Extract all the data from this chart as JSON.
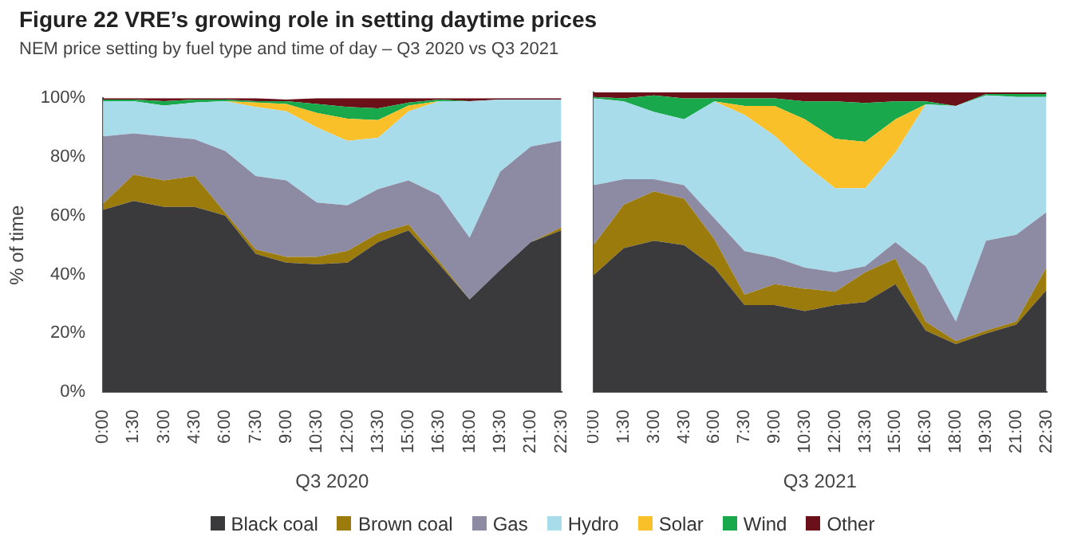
{
  "chart_data": [
    {
      "type": "area",
      "title": "Figure 22  VRE’s growing role in setting daytime prices",
      "subtitle": "NEM price setting by fuel type and time of day – Q3 2020 vs Q3 2021",
      "xlabel": "Q3 2020",
      "ylabel": "% of time",
      "stacked": true,
      "grid": false,
      "legend": "bottom",
      "categories": [
        "0:00",
        "1:30",
        "3:00",
        "4:30",
        "6:00",
        "7:30",
        "9:00",
        "10:30",
        "12:00",
        "13:30",
        "15:00",
        "16:30",
        "18:00",
        "19:30",
        "21:00",
        "22:30"
      ],
      "ylim": [
        0,
        100
      ],
      "yticks": [
        {
          "value": 0,
          "label": "0%"
        },
        {
          "value": 20,
          "label": "20%"
        },
        {
          "value": 40,
          "label": "40%"
        },
        {
          "value": 60,
          "label": "60%"
        },
        {
          "value": 80,
          "label": "80%"
        },
        {
          "value": 100,
          "label": "100%"
        }
      ],
      "series": [
        {
          "name": "Black coal",
          "color": "#3a3a3c",
          "values": [
            62,
            65,
            63,
            63,
            60,
            47,
            44,
            43.5,
            44,
            51,
            55,
            43.5,
            31.5,
            41.5,
            51,
            55
          ]
        },
        {
          "name": "Brown coal",
          "color": "#9a7b0c",
          "values": [
            2,
            9,
            9,
            10.5,
            1,
            1.5,
            2,
            2.5,
            4,
            3,
            2,
            1,
            0,
            0,
            0,
            1
          ]
        },
        {
          "name": "Gas",
          "color": "#8d8ba3",
          "values": [
            23,
            14,
            15,
            12.5,
            21,
            25,
            26,
            18.5,
            15.5,
            15,
            15,
            22.5,
            21,
            33.5,
            32.5,
            29.5
          ]
        },
        {
          "name": "Hydro",
          "color": "#a9dcea",
          "values": [
            12,
            11,
            10.5,
            12.5,
            17,
            23.5,
            23.5,
            25.5,
            22,
            17.5,
            23.5,
            32,
            46.5,
            24.5,
            16,
            14
          ]
        },
        {
          "name": "Solar",
          "color": "#f9c02a",
          "values": [
            0,
            0,
            0,
            0,
            0,
            1.5,
            2.5,
            5,
            7.5,
            6,
            2,
            0,
            0,
            0,
            0,
            0
          ]
        },
        {
          "name": "Wind",
          "color": "#1aa84c",
          "values": [
            0.5,
            0.5,
            1.5,
            1,
            0.5,
            0.5,
            1,
            3,
            4,
            4,
            1,
            0.5,
            0,
            0,
            0,
            0
          ]
        },
        {
          "name": "Other",
          "color": "#6b1018",
          "values": [
            0.5,
            0.5,
            1,
            0.5,
            0.5,
            1,
            0.5,
            2,
            3,
            3.5,
            1.5,
            0.5,
            1,
            0.5,
            0.5,
            0.5
          ]
        }
      ]
    },
    {
      "type": "area",
      "xlabel": "Q3 2021",
      "stacked": true,
      "grid": false,
      "tick_labels": "x",
      "categories": [
        "0:00",
        "1:30",
        "3:00",
        "4:30",
        "6:00",
        "7:30",
        "9:00",
        "10:30",
        "12:00",
        "13:30",
        "15:00",
        "16:30",
        "18:00",
        "19:30",
        "21:00",
        "22:30"
      ],
      "ylim": [
        0,
        100
      ],
      "series": [
        {
          "color": "#3a3a3c",
          "values": [
            39,
            48,
            50.5,
            49,
            41.5,
            29,
            29,
            27,
            29,
            30,
            36,
            20.5,
            16,
            19.5,
            22.5,
            34
          ]
        },
        {
          "color": "#9a7b0c",
          "values": [
            10,
            14.5,
            16.5,
            15.5,
            9.5,
            3.5,
            7,
            7.5,
            4.5,
            10,
            8.5,
            3,
            1,
            1,
            1,
            7.5
          ]
        },
        {
          "color": "#8d8ba3",
          "values": [
            20,
            8.5,
            4,
            4.5,
            7,
            14.5,
            9,
            7,
            6.5,
            2,
            5.5,
            18.5,
            6.5,
            30,
            29,
            18.5
          ]
        },
        {
          "color": "#a9dcea",
          "values": [
            29,
            26,
            22.5,
            22,
            39,
            45.5,
            40.5,
            34.5,
            28,
            26,
            30,
            54,
            72,
            48.5,
            46,
            38.5
          ]
        },
        {
          "color": "#f9c02a",
          "values": [
            0,
            0,
            0,
            0,
            0,
            3,
            10,
            15,
            16.5,
            15.5,
            11,
            0,
            0,
            0,
            0,
            0
          ]
        },
        {
          "color": "#1aa84c",
          "values": [
            0.5,
            1,
            5.5,
            7,
            1,
            2.5,
            2.5,
            6,
            12.5,
            13,
            6,
            1,
            0,
            0.5,
            1,
            1
          ]
        },
        {
          "color": "#6b1018",
          "values": [
            1.5,
            2,
            1,
            2,
            2,
            2,
            2,
            3,
            3,
            3.5,
            3,
            3,
            4.5,
            0.5,
            0.5,
            0.5
          ]
        }
      ]
    }
  ]
}
